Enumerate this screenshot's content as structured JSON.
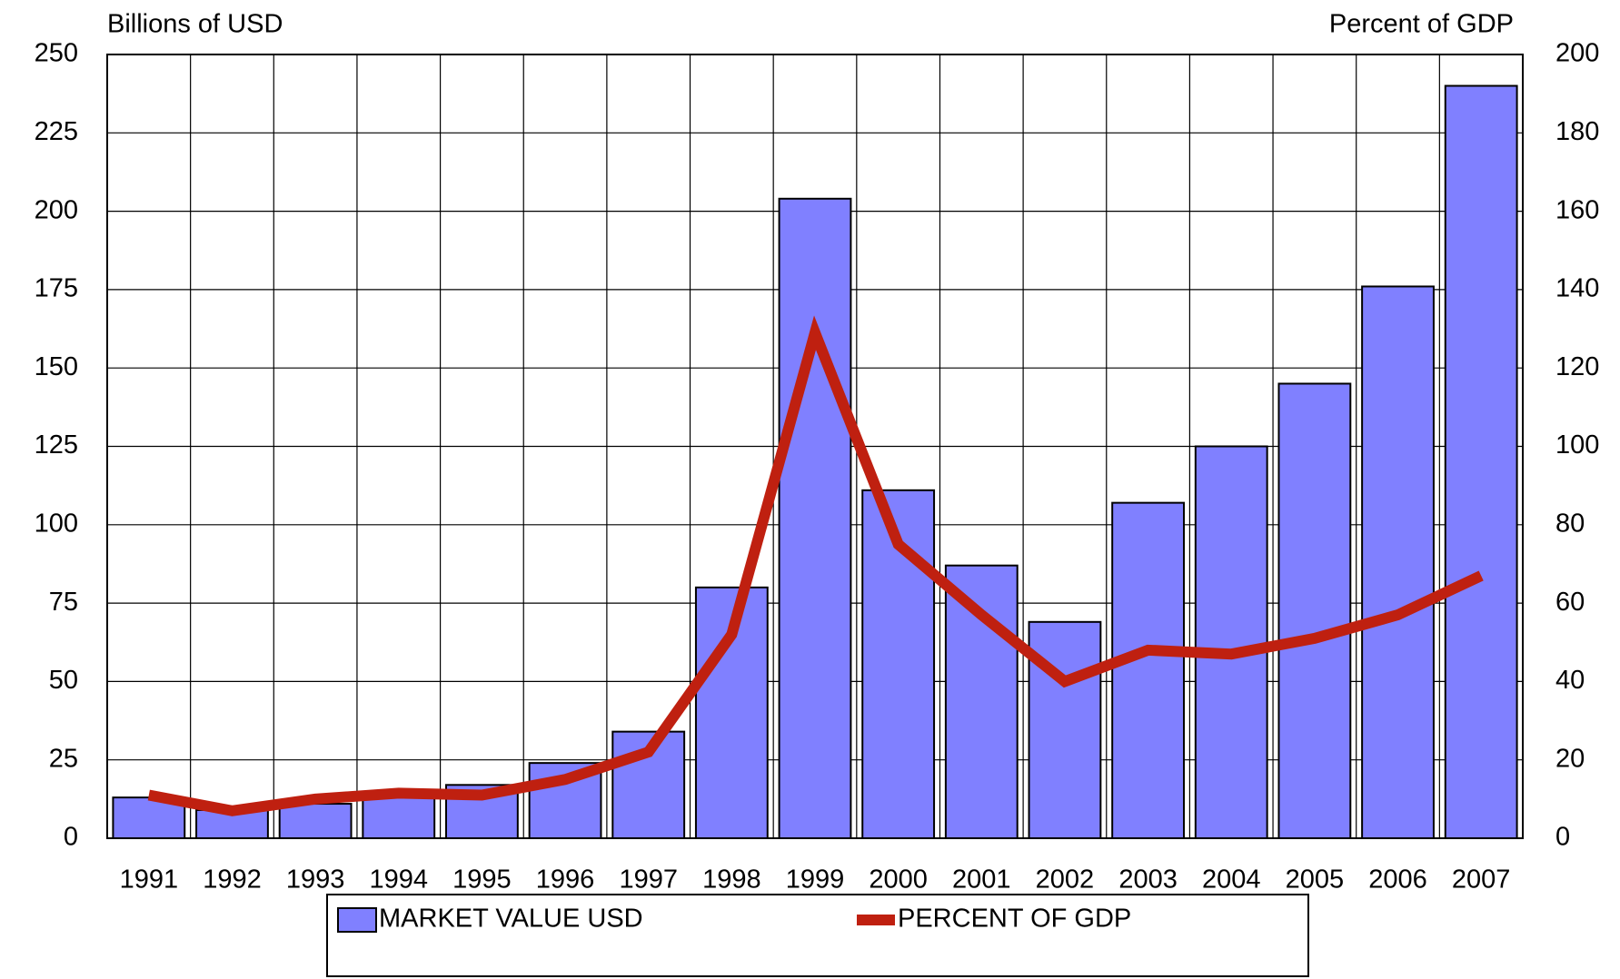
{
  "chart_data": {
    "type": "bar_line",
    "y_label": "Billions of USD",
    "y2_label": "Percent of GDP",
    "categories": [
      "1991",
      "1992",
      "1993",
      "1994",
      "1995",
      "1996",
      "1997",
      "1998",
      "1999",
      "2000",
      "2001",
      "2002",
      "2003",
      "2004",
      "2005",
      "2006",
      "2007"
    ],
    "series": [
      {
        "name": "MARKET VALUE USD",
        "color": "#8080ff",
        "type": "bar",
        "values": [
          13,
          9,
          11,
          14,
          17,
          24,
          34,
          80,
          204,
          111,
          87,
          69,
          107,
          125,
          145,
          176,
          240
        ]
      },
      {
        "name": "PERCENT OF GDP",
        "color": "#bf2010",
        "type": "line",
        "axis": "y2",
        "values": [
          11,
          7,
          10,
          11.5,
          11,
          15,
          22,
          52,
          129,
          75,
          57,
          40,
          48,
          47,
          51,
          57,
          67
        ]
      }
    ],
    "ylim": [
      0,
      250
    ],
    "yticks": [
      0,
      25,
      50,
      75,
      100,
      125,
      150,
      175,
      200,
      225,
      250
    ],
    "y2lim": [
      0,
      200
    ],
    "y2ticks": [
      0,
      20,
      40,
      60,
      80,
      100,
      120,
      140,
      160,
      180,
      200
    ],
    "grid": true,
    "legend": "bottom"
  }
}
